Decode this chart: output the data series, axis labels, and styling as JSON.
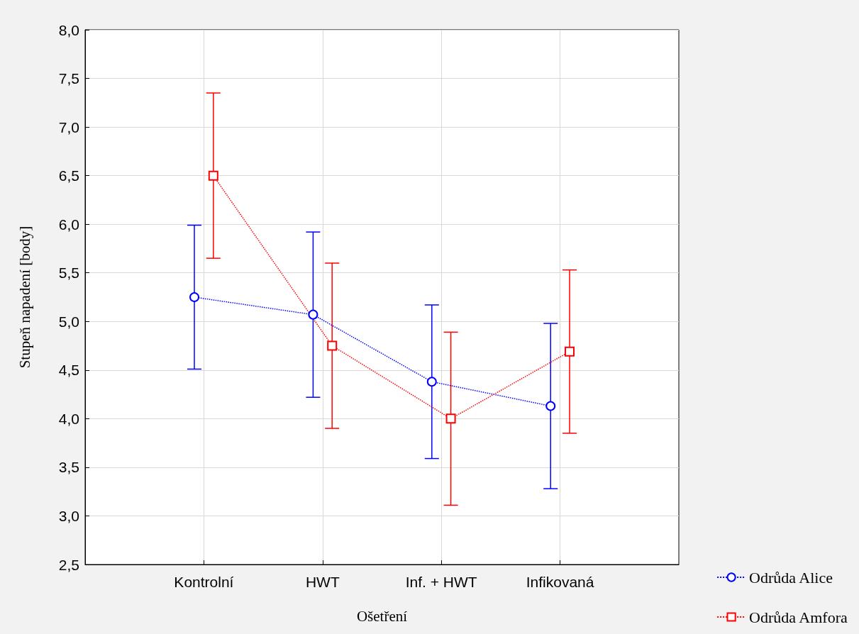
{
  "chart_data": {
    "type": "line",
    "xlabel": "Ošetření",
    "ylabel": "Stupeň napadení [body]",
    "categories": [
      "Kontrolní",
      "HWT",
      "Inf. + HWT",
      "Infikovaná"
    ],
    "series": [
      {
        "name": "Odrůda Alice",
        "color": "#0000ff",
        "marker": "circle",
        "values": [
          5.25,
          5.07,
          4.38,
          4.13
        ],
        "errors": [
          0.74,
          0.85,
          0.79,
          0.85
        ]
      },
      {
        "name": "Odrůda Amfora",
        "color": "#ff0000",
        "marker": "square",
        "values": [
          6.5,
          4.75,
          4.0,
          4.69
        ],
        "errors": [
          0.85,
          0.85,
          0.89,
          0.84
        ]
      }
    ],
    "ylim": [
      2.5,
      8.0
    ],
    "yticks": [
      {
        "value": 2.5,
        "label": "2,5"
      },
      {
        "value": 3.0,
        "label": "3,0"
      },
      {
        "value": 3.5,
        "label": "3,5"
      },
      {
        "value": 4.0,
        "label": "4,0"
      },
      {
        "value": 4.5,
        "label": "4,5"
      },
      {
        "value": 5.0,
        "label": "5,0"
      },
      {
        "value": 5.5,
        "label": "5,5"
      },
      {
        "value": 6.0,
        "label": "6,0"
      },
      {
        "value": 6.5,
        "label": "6,5"
      },
      {
        "value": 7.0,
        "label": "7,0"
      },
      {
        "value": 7.5,
        "label": "7,5"
      },
      {
        "value": 8.0,
        "label": "8,0"
      }
    ],
    "grid": true,
    "legend": "bottom right",
    "line_style": "dotted"
  }
}
